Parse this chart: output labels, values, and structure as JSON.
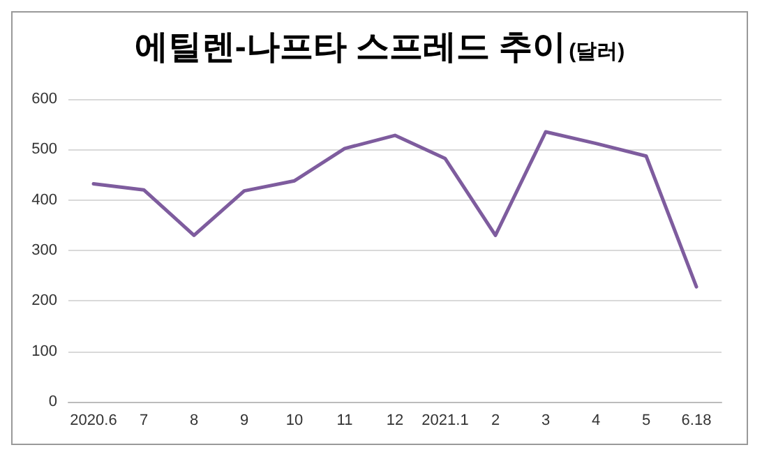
{
  "chart_data": {
    "type": "line",
    "title": "에틸렌-나프타 스프레드 추이",
    "subtitle": "(달러)",
    "categories": [
      "2020.6",
      "7",
      "8",
      "9",
      "10",
      "11",
      "12",
      "2021.1",
      "2",
      "3",
      "4",
      "5",
      "6.18"
    ],
    "series": [
      {
        "color": "#7e5c9e",
        "values": [
          432,
          420,
          330,
          418,
          438,
          502,
          528,
          482,
          330,
          535,
          512,
          487,
          228
        ]
      }
    ],
    "ylim": [
      0,
      600
    ],
    "yticks": [
      0,
      100,
      200,
      300,
      400,
      500,
      600
    ],
    "grid": "y",
    "marker": "none",
    "line_style": "solid"
  }
}
